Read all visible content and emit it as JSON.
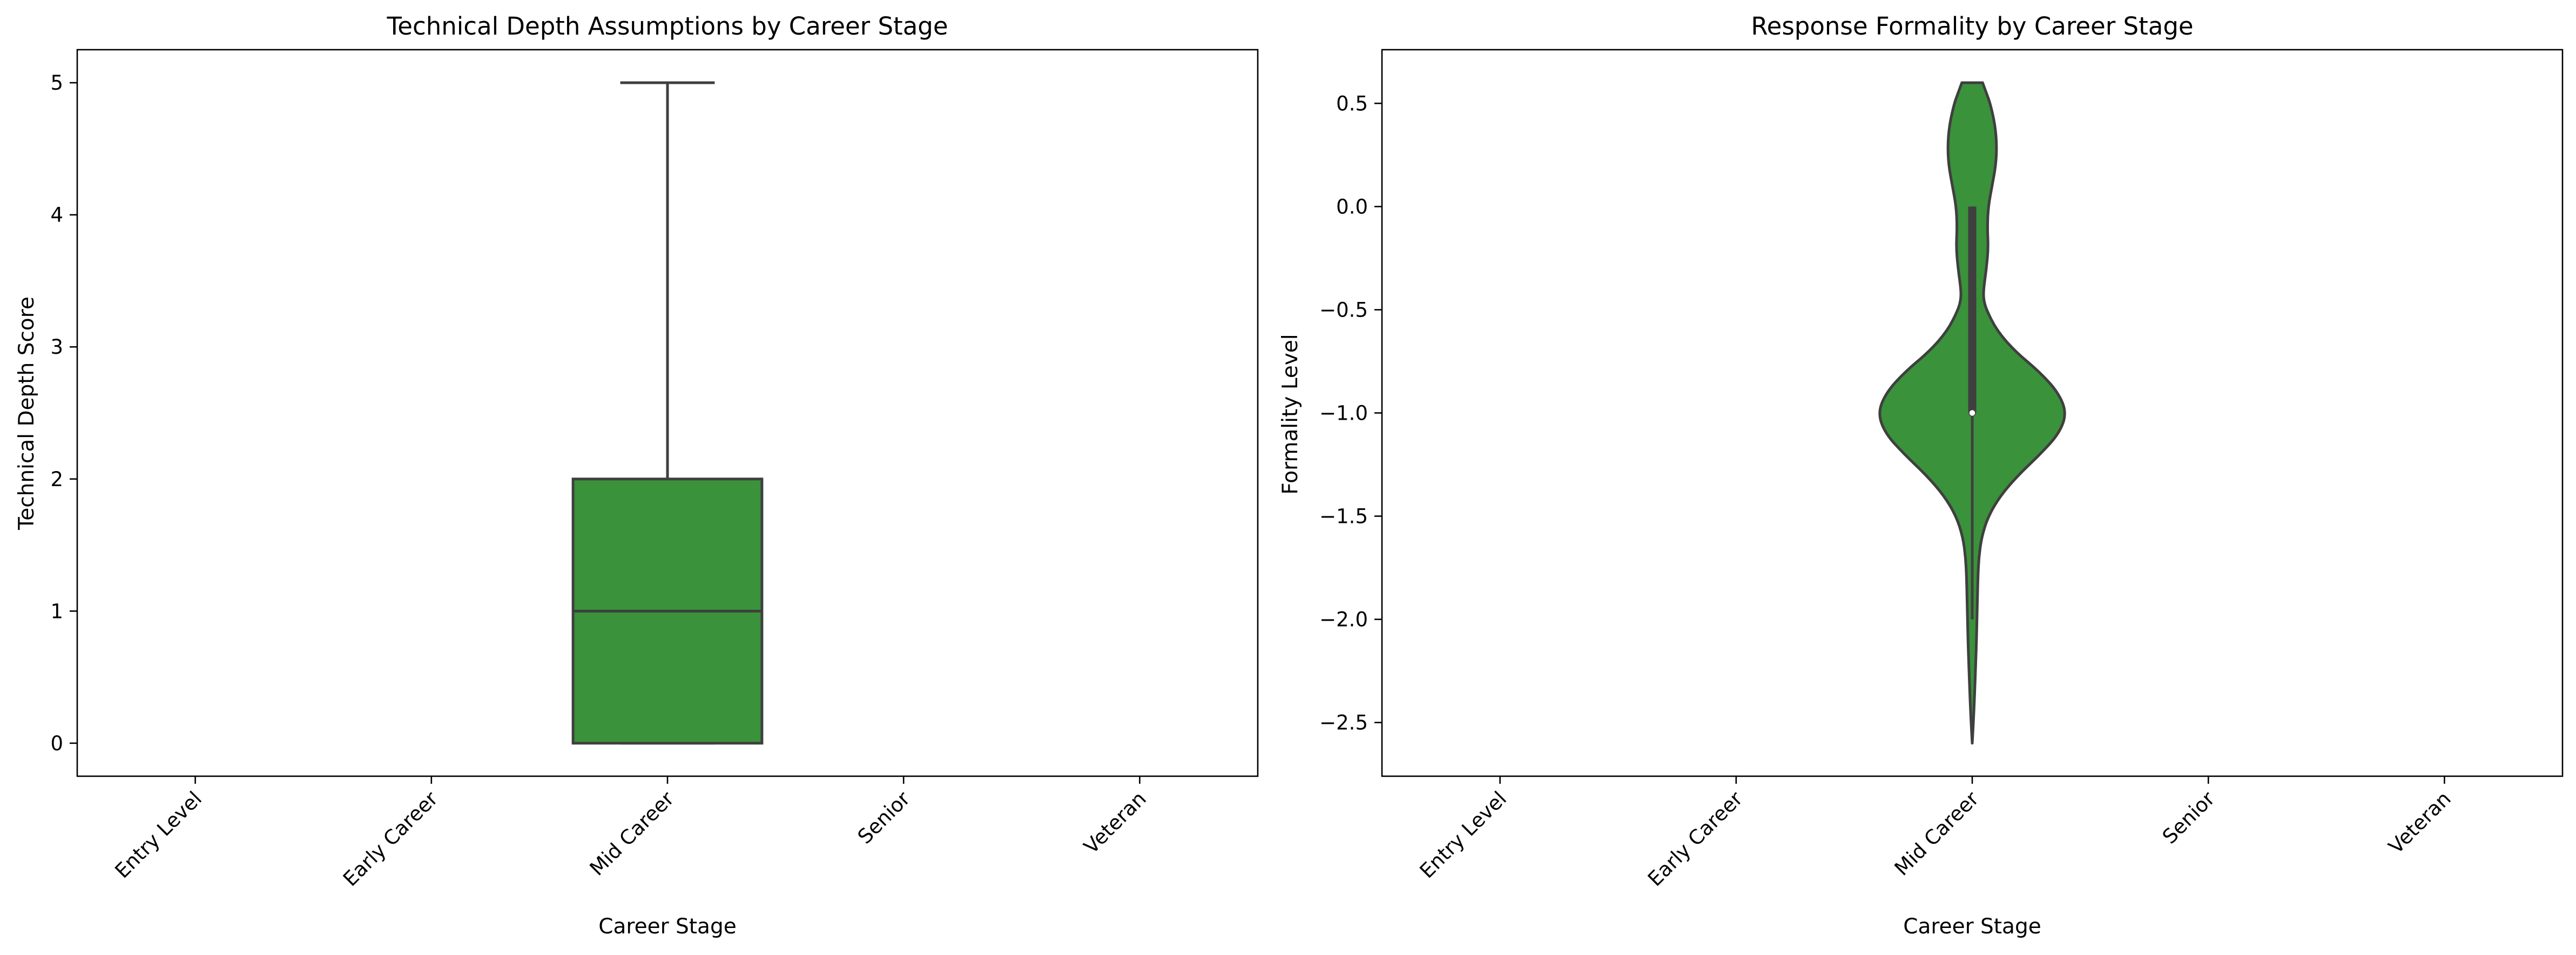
{
  "chart_data": [
    {
      "type": "box",
      "title": "Technical Depth Assumptions by Career Stage",
      "xlabel": "Career Stage",
      "ylabel": "Technical Depth Score",
      "categories": [
        "Entry Level",
        "Early Career",
        "Mid Career",
        "Senior",
        "Veteran"
      ],
      "ylim": [
        -0.25,
        5.25
      ],
      "yticks": [
        0,
        1,
        2,
        3,
        4,
        5
      ],
      "ytick_labels": [
        "0",
        "1",
        "2",
        "3",
        "4",
        "5"
      ],
      "color": "#3a923a",
      "edge_color": "#3f3f3f",
      "boxes": [
        {
          "category": "Mid Career",
          "whislo": 0,
          "q1": 0,
          "median": 1,
          "q3": 2,
          "whishi": 5
        }
      ]
    },
    {
      "type": "violin",
      "title": "Response Formality by Career Stage",
      "xlabel": "Career Stage",
      "ylabel": "Formality Level",
      "categories": [
        "Entry Level",
        "Early Career",
        "Mid Career",
        "Senior",
        "Veteran"
      ],
      "ylim": [
        -2.76,
        0.76
      ],
      "yticks": [
        0.5,
        0.0,
        -0.5,
        -1.0,
        -1.5,
        -2.0,
        -2.5
      ],
      "ytick_labels": [
        "0.5",
        "0.0",
        "−0.5",
        "−1.0",
        "−1.5",
        "−2.0",
        "−2.5"
      ],
      "color": "#3a923a",
      "edge_color": "#3f3f3f",
      "violins": [
        {
          "category": "Mid Career",
          "min": -2.6,
          "q1": -1.0,
          "median": -1.0,
          "q3": 0.0,
          "max": 0.6,
          "whisker_low": -2.0,
          "whisker_high": 0.0,
          "density_profile": [
            [
              0.6,
              0.11
            ],
            [
              0.55,
              0.15
            ],
            [
              0.5,
              0.19
            ],
            [
              0.4,
              0.24
            ],
            [
              0.3,
              0.26
            ],
            [
              0.2,
              0.25
            ],
            [
              0.1,
              0.21
            ],
            [
              0.0,
              0.17
            ],
            [
              -0.1,
              0.16
            ],
            [
              -0.2,
              0.17
            ],
            [
              -0.3,
              0.15
            ],
            [
              -0.4,
              0.12
            ],
            [
              -0.45,
              0.12
            ],
            [
              -0.5,
              0.15
            ],
            [
              -0.6,
              0.26
            ],
            [
              -0.7,
              0.45
            ],
            [
              -0.8,
              0.71
            ],
            [
              -0.9,
              0.91
            ],
            [
              -1.0,
              1.0
            ],
            [
              -1.1,
              0.92
            ],
            [
              -1.2,
              0.72
            ],
            [
              -1.3,
              0.49
            ],
            [
              -1.4,
              0.3
            ],
            [
              -1.5,
              0.17
            ],
            [
              -1.6,
              0.1
            ],
            [
              -1.7,
              0.07
            ],
            [
              -1.8,
              0.06
            ],
            [
              -1.9,
              0.055
            ],
            [
              -2.0,
              0.05
            ],
            [
              -2.1,
              0.045
            ],
            [
              -2.2,
              0.038
            ],
            [
              -2.3,
              0.03
            ],
            [
              -2.4,
              0.022
            ],
            [
              -2.5,
              0.012
            ],
            [
              -2.6,
              0.0
            ]
          ]
        }
      ]
    }
  ]
}
